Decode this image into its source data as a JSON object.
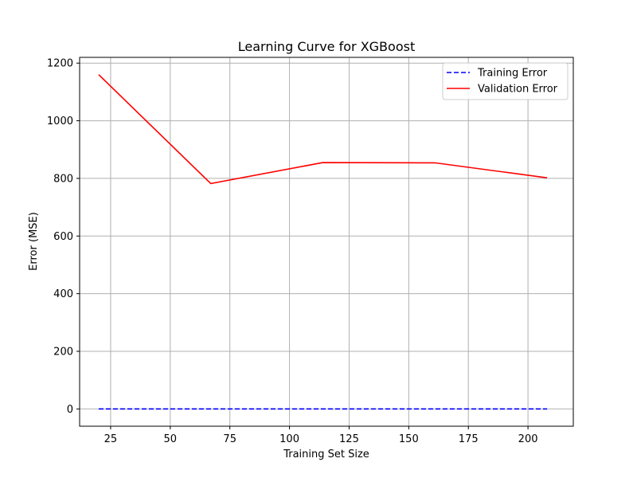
{
  "chart_data": {
    "type": "line",
    "title": "Learning Curve for XGBoost",
    "xlabel": "Training Set Size",
    "ylabel": "Error (MSE)",
    "xlim": [
      12,
      219
    ],
    "ylim": [
      -60,
      1220
    ],
    "xticks": [
      25,
      50,
      75,
      100,
      125,
      150,
      175,
      200
    ],
    "yticks": [
      0,
      200,
      400,
      600,
      800,
      1000,
      1200
    ],
    "grid": true,
    "legend": "top-right",
    "series": [
      {
        "name": "Training Error",
        "color": "#0000ff",
        "style": "dashed",
        "x": [
          20,
          67,
          114,
          161,
          208
        ],
        "y": [
          0,
          0,
          0,
          0,
          0
        ]
      },
      {
        "name": "Validation Error",
        "color": "#ff0000",
        "style": "solid",
        "x": [
          20,
          67,
          114,
          161,
          208
        ],
        "y": [
          1160,
          782,
          855,
          854,
          802
        ]
      }
    ]
  }
}
